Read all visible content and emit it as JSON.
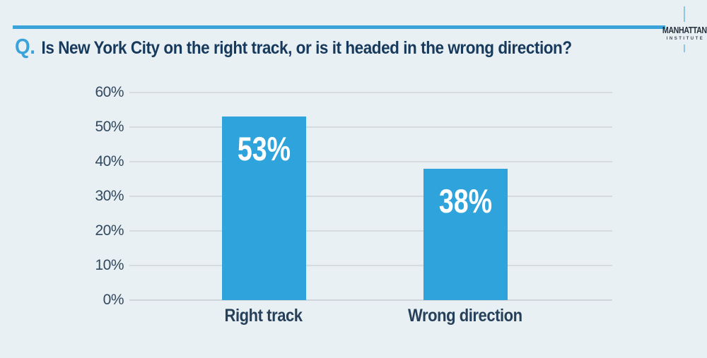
{
  "header": {
    "q_label": "Q."
  },
  "logo": {
    "name": "MANHATTAN",
    "subname": "INSTITUTE"
  },
  "colors": {
    "background": "#e9f0f4",
    "accent_blue": "#3aa3da",
    "bar_blue": "#2ea3dc",
    "dark_navy_text": "#16395c"
  },
  "chart_data": {
    "type": "bar",
    "title": "Is New York City on the right track, or is it headed in the wrong direction?",
    "categories": [
      "Right track",
      "Wrong direction"
    ],
    "values": [
      53,
      38
    ],
    "value_labels": [
      "53%",
      "38%"
    ],
    "y_ticks": [
      "60%",
      "50%",
      "40%",
      "30%",
      "20%",
      "10%",
      "0%"
    ],
    "ylim": [
      0,
      60
    ],
    "xlabel": "",
    "ylabel": "",
    "grid": true,
    "legend": "none",
    "bar_color": "#2ea3dc",
    "value_label_color": "#ffffff"
  }
}
